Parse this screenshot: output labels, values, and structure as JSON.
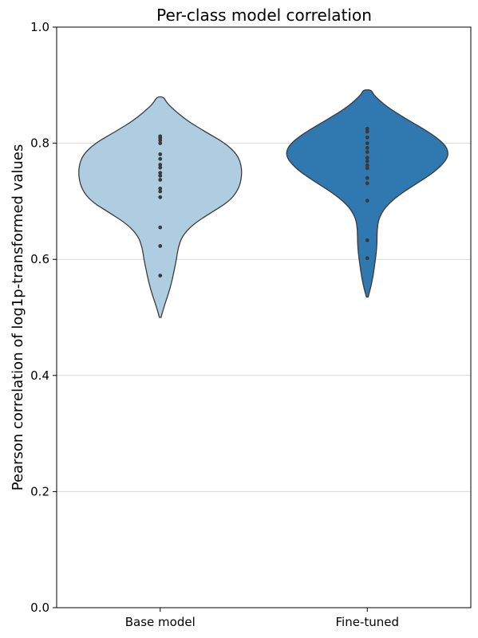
{
  "chart_data": {
    "type": "violin",
    "title": "Per-class model correlation",
    "xlabel": "",
    "ylabel": "Pearson correlation of log1p-transformed values",
    "ylim": [
      0.0,
      1.0
    ],
    "yticks": [
      "0.0",
      "0.2",
      "0.4",
      "0.6",
      "0.8",
      "1.0"
    ],
    "grid": "horizontal",
    "categories": [
      "Base model",
      "Fine-tuned"
    ],
    "series": [
      {
        "category": "Base model",
        "color": "#aecde1",
        "range": [
          0.5,
          0.88
        ],
        "density": [
          [
            0.5,
            0.01
          ],
          [
            0.52,
            0.05
          ],
          [
            0.54,
            0.1
          ],
          [
            0.56,
            0.14
          ],
          [
            0.58,
            0.17
          ],
          [
            0.6,
            0.2
          ],
          [
            0.62,
            0.22
          ],
          [
            0.64,
            0.27
          ],
          [
            0.66,
            0.4
          ],
          [
            0.68,
            0.62
          ],
          [
            0.7,
            0.85
          ],
          [
            0.72,
            0.96
          ],
          [
            0.74,
            1.0
          ],
          [
            0.76,
            1.0
          ],
          [
            0.78,
            0.95
          ],
          [
            0.8,
            0.8
          ],
          [
            0.82,
            0.55
          ],
          [
            0.84,
            0.32
          ],
          [
            0.86,
            0.15
          ],
          [
            0.87,
            0.08
          ],
          [
            0.88,
            0.04
          ]
        ],
        "points": [
          0.572,
          0.623,
          0.655,
          0.707,
          0.717,
          0.722,
          0.737,
          0.744,
          0.749,
          0.758,
          0.763,
          0.773,
          0.781,
          0.8,
          0.805,
          0.809,
          0.812
        ]
      },
      {
        "category": "Fine-tuned",
        "color": "#2f78b0",
        "range": [
          0.535,
          0.892
        ],
        "density": [
          [
            0.535,
            0.01
          ],
          [
            0.55,
            0.04
          ],
          [
            0.57,
            0.07
          ],
          [
            0.59,
            0.09
          ],
          [
            0.61,
            0.11
          ],
          [
            0.63,
            0.12
          ],
          [
            0.65,
            0.12
          ],
          [
            0.67,
            0.14
          ],
          [
            0.69,
            0.22
          ],
          [
            0.71,
            0.38
          ],
          [
            0.73,
            0.6
          ],
          [
            0.75,
            0.82
          ],
          [
            0.77,
            0.97
          ],
          [
            0.785,
            1.0
          ],
          [
            0.8,
            0.94
          ],
          [
            0.82,
            0.75
          ],
          [
            0.84,
            0.5
          ],
          [
            0.86,
            0.27
          ],
          [
            0.875,
            0.14
          ],
          [
            0.885,
            0.07
          ],
          [
            0.892,
            0.05
          ]
        ],
        "points": [
          0.602,
          0.633,
          0.701,
          0.731,
          0.74,
          0.757,
          0.762,
          0.769,
          0.775,
          0.785,
          0.792,
          0.8,
          0.81,
          0.82,
          0.825
        ]
      }
    ]
  }
}
